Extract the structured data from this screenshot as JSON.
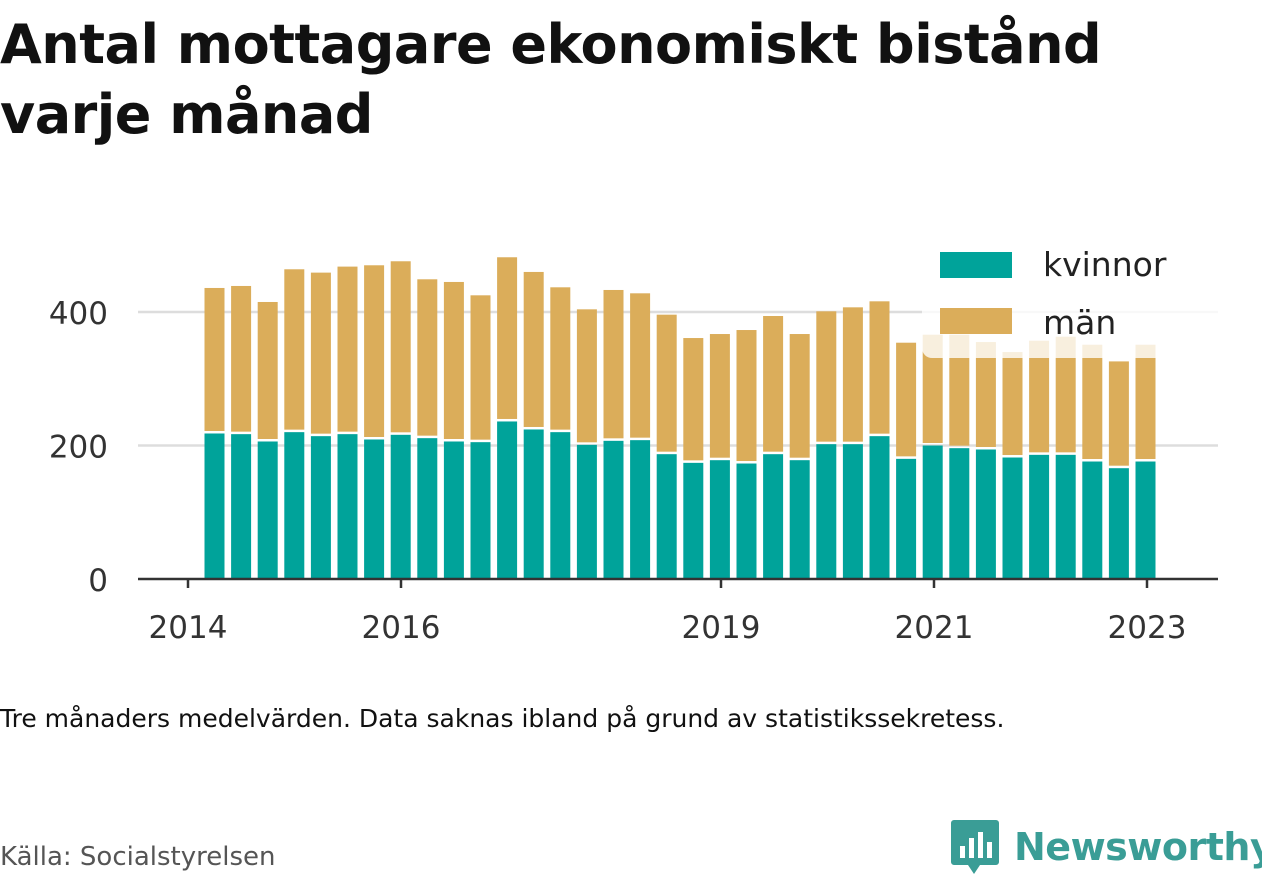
{
  "title": "Antal mottagare ekonomiskt bistånd varje månad",
  "note": "Tre månaders medelvärden. Data saknas ibland på grund av statistikssekretess.",
  "source": "Källa: Socialstyrelsen",
  "brand": "Newsworthy",
  "colors": {
    "kvinnor": "#00a39a",
    "man": "#dbad5a",
    "grid": "#dddddd",
    "axis": "#333333",
    "brand": "#3a9d96"
  },
  "chart_data": {
    "type": "bar",
    "stacked": true,
    "x_axis_ticks": [
      "2014",
      "2016",
      "2019",
      "2021",
      "2023"
    ],
    "y_axis_ticks": [
      "0",
      "200",
      "400"
    ],
    "ylim": [
      0,
      500
    ],
    "grid": true,
    "legend_position": "top-right",
    "series": [
      {
        "name": "kvinnor",
        "values": [
          218,
          217,
          206,
          220,
          214,
          217,
          209,
          216,
          211,
          206,
          205,
          236,
          224,
          220,
          201,
          207,
          208,
          187,
          174,
          178,
          173,
          187,
          178,
          202,
          202,
          214,
          180,
          200,
          196,
          194,
          182,
          186,
          186,
          176,
          166,
          176
        ]
      },
      {
        "name": "män",
        "values": [
          218,
          222,
          209,
          244,
          245,
          251,
          261,
          260,
          238,
          239,
          220,
          246,
          236,
          217,
          203,
          226,
          220,
          209,
          187,
          189,
          200,
          207,
          189,
          199,
          205,
          202,
          174,
          166,
          170,
          161,
          158,
          171,
          177,
          175,
          160,
          175
        ]
      }
    ]
  }
}
